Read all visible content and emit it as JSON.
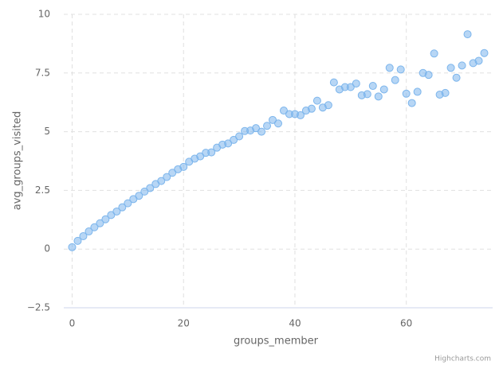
{
  "chart_data": {
    "type": "scatter",
    "x_label": "groups_member",
    "y_label": "avg_groups_visited",
    "credits": "Highcharts.com",
    "x": [
      0,
      1,
      2,
      3,
      4,
      5,
      6,
      7,
      8,
      9,
      10,
      11,
      12,
      13,
      14,
      15,
      16,
      17,
      18,
      19,
      20,
      21,
      22,
      23,
      24,
      25,
      26,
      27,
      28,
      29,
      30,
      31,
      32,
      33,
      34,
      35,
      36,
      37,
      38,
      39,
      40,
      41,
      42,
      43,
      44,
      45,
      46,
      47,
      48,
      49,
      50,
      51,
      52,
      53,
      54,
      55,
      56,
      57,
      58,
      59,
      60,
      61,
      62,
      63,
      64,
      65,
      66,
      67,
      68,
      69,
      70,
      71,
      72,
      73,
      74
    ],
    "series": [
      {
        "color": "#7cb5ec",
        "values": [
          0.08,
          0.35,
          0.55,
          0.75,
          0.93,
          1.1,
          1.27,
          1.45,
          1.6,
          1.78,
          1.95,
          2.13,
          2.27,
          2.45,
          2.6,
          2.77,
          2.9,
          3.07,
          3.25,
          3.4,
          3.5,
          3.72,
          3.85,
          3.95,
          4.1,
          4.12,
          4.32,
          4.45,
          4.5,
          4.65,
          4.8,
          5.03,
          5.05,
          5.15,
          5.0,
          5.25,
          5.5,
          5.35,
          5.9,
          5.75,
          5.75,
          5.7,
          5.9,
          5.98,
          6.32,
          6.03,
          6.13,
          7.1,
          6.8,
          6.9,
          6.9,
          7.05,
          6.55,
          6.6,
          6.95,
          6.5,
          6.8,
          7.72,
          7.2,
          7.65,
          6.62,
          6.22,
          6.7,
          7.5,
          7.42,
          8.33,
          6.58,
          6.65,
          7.72,
          7.3,
          7.82,
          9.15,
          7.92,
          8.02,
          8.35
        ]
      }
    ],
    "xlim": [
      -1.5,
      75.5
    ],
    "xticks": [
      0,
      20,
      40,
      60
    ],
    "ylim": [
      -2.5,
      10
    ],
    "yticks": [
      {
        "value": -2.5,
        "label": "−2.5"
      },
      0,
      2.5,
      5,
      7.5,
      10
    ],
    "grid": true
  }
}
